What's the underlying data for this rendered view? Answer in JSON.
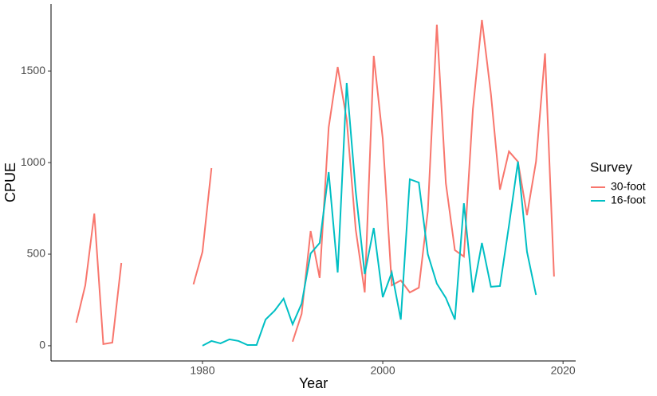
{
  "chart_data": {
    "type": "line",
    "x_label": "Year",
    "y_label": "CPUE",
    "legend_title": "Survey",
    "x": [
      1966,
      1967,
      1968,
      1969,
      1970,
      1971,
      1972,
      1973,
      1974,
      1975,
      1976,
      1977,
      1978,
      1979,
      1980,
      1981,
      1982,
      1983,
      1984,
      1985,
      1986,
      1987,
      1988,
      1989,
      1990,
      1991,
      1992,
      1993,
      1994,
      1995,
      1996,
      1997,
      1998,
      1999,
      2000,
      2001,
      2002,
      2003,
      2004,
      2005,
      2006,
      2007,
      2008,
      2009,
      2010,
      2011,
      2012,
      2013,
      2014,
      2015,
      2016,
      2017,
      2018,
      2019
    ],
    "series": [
      {
        "name": "30-foot",
        "color": "#F8766D",
        "values": [
          126,
          330,
          722,
          9,
          17,
          452,
          null,
          null,
          null,
          null,
          null,
          null,
          null,
          335,
          513,
          970,
          null,
          null,
          null,
          null,
          null,
          null,
          null,
          null,
          22,
          174,
          626,
          370,
          1192,
          1522,
          1235,
          635,
          291,
          1583,
          1130,
          330,
          357,
          291,
          317,
          735,
          1753,
          887,
          522,
          487,
          1292,
          1779,
          1374,
          852,
          1061,
          1005,
          713,
          1005,
          1596,
          378
        ]
      },
      {
        "name": "16-foot",
        "color": "#00BFC4",
        "values": [
          null,
          null,
          null,
          null,
          null,
          null,
          null,
          null,
          null,
          null,
          null,
          null,
          null,
          null,
          0,
          26,
          13,
          35,
          26,
          4,
          4,
          143,
          191,
          257,
          117,
          230,
          504,
          561,
          948,
          400,
          1435,
          843,
          391,
          643,
          265,
          400,
          143,
          909,
          891,
          500,
          339,
          261,
          143,
          778,
          291,
          561,
          322,
          326,
          656,
          1005,
          513,
          278,
          null,
          null
        ]
      }
    ],
    "xlim": [
      1963.2,
      2021.4
    ],
    "xticks": [
      1980,
      2000,
      2020
    ],
    "ylim": [
      -83,
      1866
    ],
    "yticks": [
      0,
      500,
      1000,
      1500
    ],
    "grid": false
  }
}
